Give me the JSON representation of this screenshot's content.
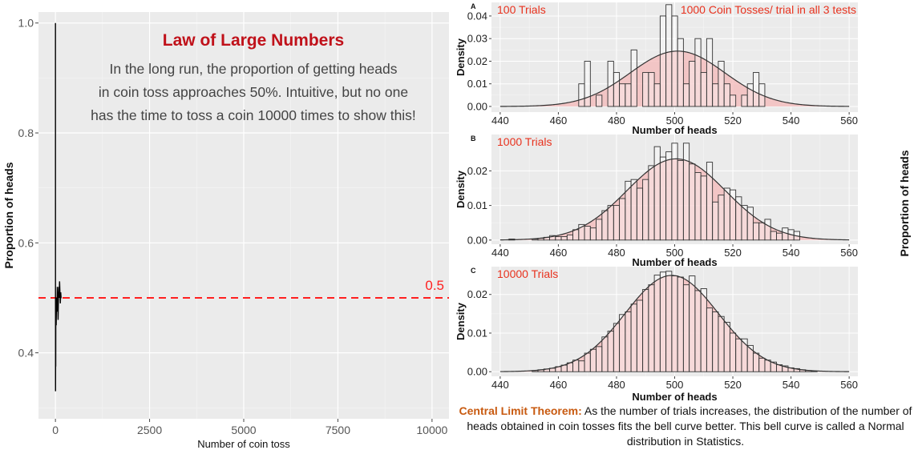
{
  "chart_data": [
    {
      "type": "line",
      "title": "Law of Large Numbers",
      "subtitle": "In the long run, the proportion of getting heads|in coin toss approaches 50%. Intuitive, but no one|has the time to toss a coin 10000 times to show this!",
      "xlabel": "Number of coin toss",
      "ylabel": "Proportion of heads",
      "xlim": [
        -450,
        10450
      ],
      "ylim": [
        0.28,
        1.02
      ],
      "xticks": [
        "0",
        "2500",
        "5000",
        "7500",
        "10000"
      ],
      "yticks": [
        "0.4",
        "0.6",
        "0.8",
        "1.0"
      ],
      "grid": true,
      "series": [
        {
          "x": [
            1,
            2,
            3,
            5,
            8,
            10,
            15,
            20,
            30,
            40,
            50,
            60,
            70,
            80,
            90,
            100,
            110,
            120,
            130,
            140,
            150,
            160
          ],
          "y": [
            1.0,
            0.5,
            0.33,
            0.4,
            0.375,
            0.5,
            0.47,
            0.45,
            0.5,
            0.475,
            0.52,
            0.5,
            0.46,
            0.5,
            0.52,
            0.5,
            0.53,
            0.51,
            0.49,
            0.51,
            0.5,
            0.5
          ],
          "color": "#000000"
        }
      ],
      "reference_line": {
        "y": 0.5,
        "label": "0.5",
        "color": "#ff2020",
        "style": "dashed"
      }
    },
    {
      "type": "bar",
      "panel_label": "A",
      "annotation": "100 Trials",
      "annotation_right": "1000 Coin Tosses/ trial in all 3 tests",
      "xlabel": "Number of heads",
      "ylabel": "Density",
      "xlim": [
        437,
        563
      ],
      "ylim": [
        -0.0025,
        0.046
      ],
      "xticks": [
        "440",
        "460",
        "480",
        "500",
        "520",
        "540",
        "560"
      ],
      "yticks": [
        "0.00",
        "0.01",
        "0.02",
        "0.03",
        "0.04"
      ],
      "binwidth": 2,
      "bin_start": [
        467,
        469,
        471,
        473,
        475,
        477,
        479,
        481,
        483,
        485,
        487,
        489,
        491,
        493,
        495,
        497,
        499,
        501,
        503,
        505,
        507,
        509,
        511,
        513,
        515,
        517,
        519,
        521,
        523,
        525,
        527,
        529
      ],
      "values": [
        0.01,
        0.02,
        0,
        0.005,
        0,
        0.02,
        0.015,
        0.01,
        0.01,
        0.025,
        0,
        0.015,
        0.015,
        0.01,
        0.04,
        0.045,
        0.04,
        0.03,
        0.01,
        0.02,
        0.03,
        0.015,
        0.03,
        0.01,
        0.02,
        0.01,
        0.005,
        0,
        0.005,
        0.01,
        0.015,
        0.01
      ],
      "normal_curve": {
        "mean": 501,
        "sd": 16.3,
        "fill": "#f4b8b8"
      }
    },
    {
      "type": "bar",
      "panel_label": "B",
      "annotation": "1000 Trials",
      "xlabel": "Number of heads",
      "ylabel": "Density",
      "xlim": [
        437,
        563
      ],
      "ylim": [
        -0.0012,
        0.0305
      ],
      "xticks": [
        "440",
        "460",
        "480",
        "500",
        "520",
        "540",
        "560"
      ],
      "yticks": [
        "0.00",
        "0.01",
        "0.02"
      ],
      "binwidth": 2,
      "bin_start": [
        443,
        445,
        447,
        449,
        451,
        453,
        455,
        457,
        459,
        461,
        463,
        465,
        467,
        469,
        471,
        473,
        475,
        477,
        479,
        481,
        483,
        485,
        487,
        489,
        491,
        493,
        495,
        497,
        499,
        501,
        503,
        505,
        507,
        509,
        511,
        513,
        515,
        517,
        519,
        521,
        523,
        525,
        527,
        529,
        531,
        533,
        535,
        537,
        539,
        541
      ],
      "values": [
        0.0003,
        0,
        0,
        0,
        0.0003,
        0.0005,
        0.0008,
        0.0013,
        0.001,
        0.001,
        0.0015,
        0.003,
        0.0045,
        0.004,
        0.0035,
        0.006,
        0.0085,
        0.01,
        0.01,
        0.012,
        0.017,
        0.0175,
        0.015,
        0.0175,
        0.0215,
        0.027,
        0.024,
        0.0255,
        0.028,
        0.023,
        0.028,
        0.022,
        0.0195,
        0.0185,
        0.0225,
        0.011,
        0.013,
        0.015,
        0.0145,
        0.0125,
        0.01,
        0.0095,
        0.005,
        0.005,
        0.006,
        0.0025,
        0.002,
        0.0035,
        0.003,
        0.0025
      ],
      "normal_curve": {
        "mean": 500.5,
        "sd": 17,
        "fill": "#f4b8b8"
      }
    },
    {
      "type": "bar",
      "panel_label": "C",
      "annotation": "10000 Trials",
      "xlabel": "Number of heads",
      "ylabel": "Density",
      "xlim": [
        437,
        563
      ],
      "ylim": [
        -0.0012,
        0.0272
      ],
      "xticks": [
        "440",
        "460",
        "480",
        "500",
        "520",
        "540",
        "560"
      ],
      "yticks": [
        "0.00",
        "0.01",
        "0.02"
      ],
      "binwidth": 2,
      "bin_start": [
        451,
        453,
        455,
        457,
        459,
        461,
        463,
        465,
        467,
        469,
        471,
        473,
        475,
        477,
        479,
        481,
        483,
        485,
        487,
        489,
        491,
        493,
        495,
        497,
        499,
        501,
        503,
        505,
        507,
        509,
        511,
        513,
        515,
        517,
        519,
        521,
        523,
        525,
        527,
        529,
        531,
        533,
        535,
        537,
        539,
        541,
        543,
        545,
        547
      ],
      "values": [
        0.0003,
        0.0005,
        0.0007,
        0.0009,
        0.0013,
        0.0017,
        0.0023,
        0.003,
        0.0028,
        0.0048,
        0.0058,
        0.0065,
        0.009,
        0.0105,
        0.0125,
        0.0148,
        0.0155,
        0.0175,
        0.0185,
        0.0213,
        0.0225,
        0.025,
        0.0258,
        0.026,
        0.0248,
        0.0245,
        0.0225,
        0.0248,
        0.021,
        0.0215,
        0.0165,
        0.0155,
        0.0143,
        0.0128,
        0.01,
        0.0085,
        0.0085,
        0.0068,
        0.0048,
        0.0035,
        0.003,
        0.0025,
        0.0018,
        0.0015,
        0.001,
        0.0008,
        0.0005,
        0.0003,
        0.0002
      ],
      "normal_curve": {
        "mean": 499,
        "sd": 16,
        "fill": "#f4b8b8"
      }
    }
  ],
  "right_edge_label": "Proportion of heads",
  "caption": {
    "lead": "Central Limit Theorem:",
    "body": " As the number of trials increases, the distribution of the number of heads obtained in coin tosses fits the bell curve better. This bell curve is called a Normal distribution in Statistics."
  }
}
